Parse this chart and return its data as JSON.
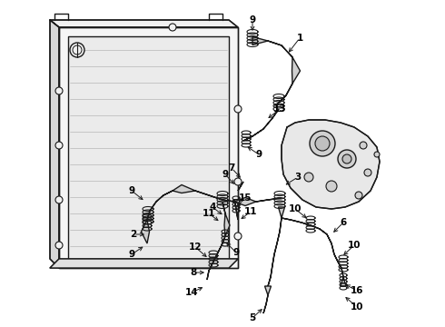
{
  "background_color": "#ffffff",
  "line_color": "#1a1a1a",
  "font_size": 7.5,
  "lw": 1.0,
  "fig_w": 4.9,
  "fig_h": 3.6,
  "dpi": 100
}
